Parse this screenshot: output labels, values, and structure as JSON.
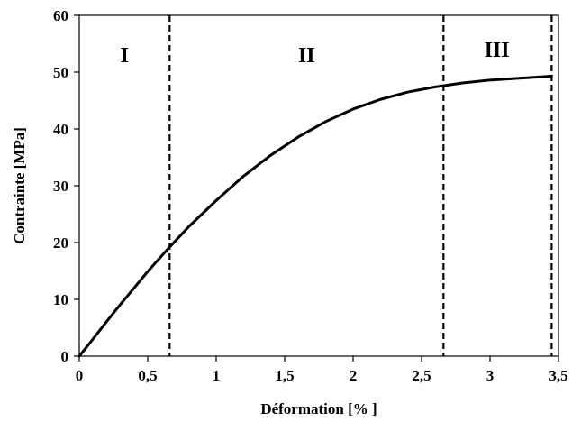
{
  "chart_data": {
    "type": "line",
    "title": "",
    "xlabel": "Déformation  [% ]",
    "ylabel": "Contrainte  [MPa]",
    "xlim": [
      0,
      3.5
    ],
    "ylim": [
      0,
      60
    ],
    "x_ticks": [
      0,
      0.5,
      1,
      1.5,
      2,
      2.5,
      3,
      3.5
    ],
    "x_tick_labels": [
      "0",
      "0,5",
      "1",
      "1,5",
      "2",
      "2,5",
      "3",
      "3,5"
    ],
    "y_ticks": [
      0,
      10,
      20,
      30,
      40,
      50,
      60
    ],
    "y_tick_labels": [
      "0",
      "10",
      "20",
      "30",
      "40",
      "50",
      "60"
    ],
    "grid": false,
    "series": [
      {
        "x": [
          0,
          0.1,
          0.2,
          0.3,
          0.4,
          0.5,
          0.6,
          0.66,
          0.8,
          1.0,
          1.2,
          1.4,
          1.6,
          1.8,
          2.0,
          2.2,
          2.4,
          2.6,
          2.66,
          2.8,
          3.0,
          3.2,
          3.4,
          3.45
        ],
        "y": [
          0,
          3.0,
          6.1,
          9.1,
          12.0,
          14.9,
          17.6,
          19.2,
          22.8,
          27.4,
          31.7,
          35.4,
          38.6,
          41.3,
          43.5,
          45.2,
          46.5,
          47.4,
          47.6,
          48.1,
          48.6,
          48.9,
          49.2,
          49.3
        ]
      }
    ],
    "boundaries": [
      0.66,
      2.66,
      3.45
    ],
    "regions": [
      {
        "label": "I",
        "x": 0.33,
        "y": 53
      },
      {
        "label": "II",
        "x": 1.66,
        "y": 53
      },
      {
        "label": "III",
        "x": 3.05,
        "y": 54
      }
    ],
    "colors": {
      "line": "#000000",
      "axes": "#000000"
    }
  }
}
